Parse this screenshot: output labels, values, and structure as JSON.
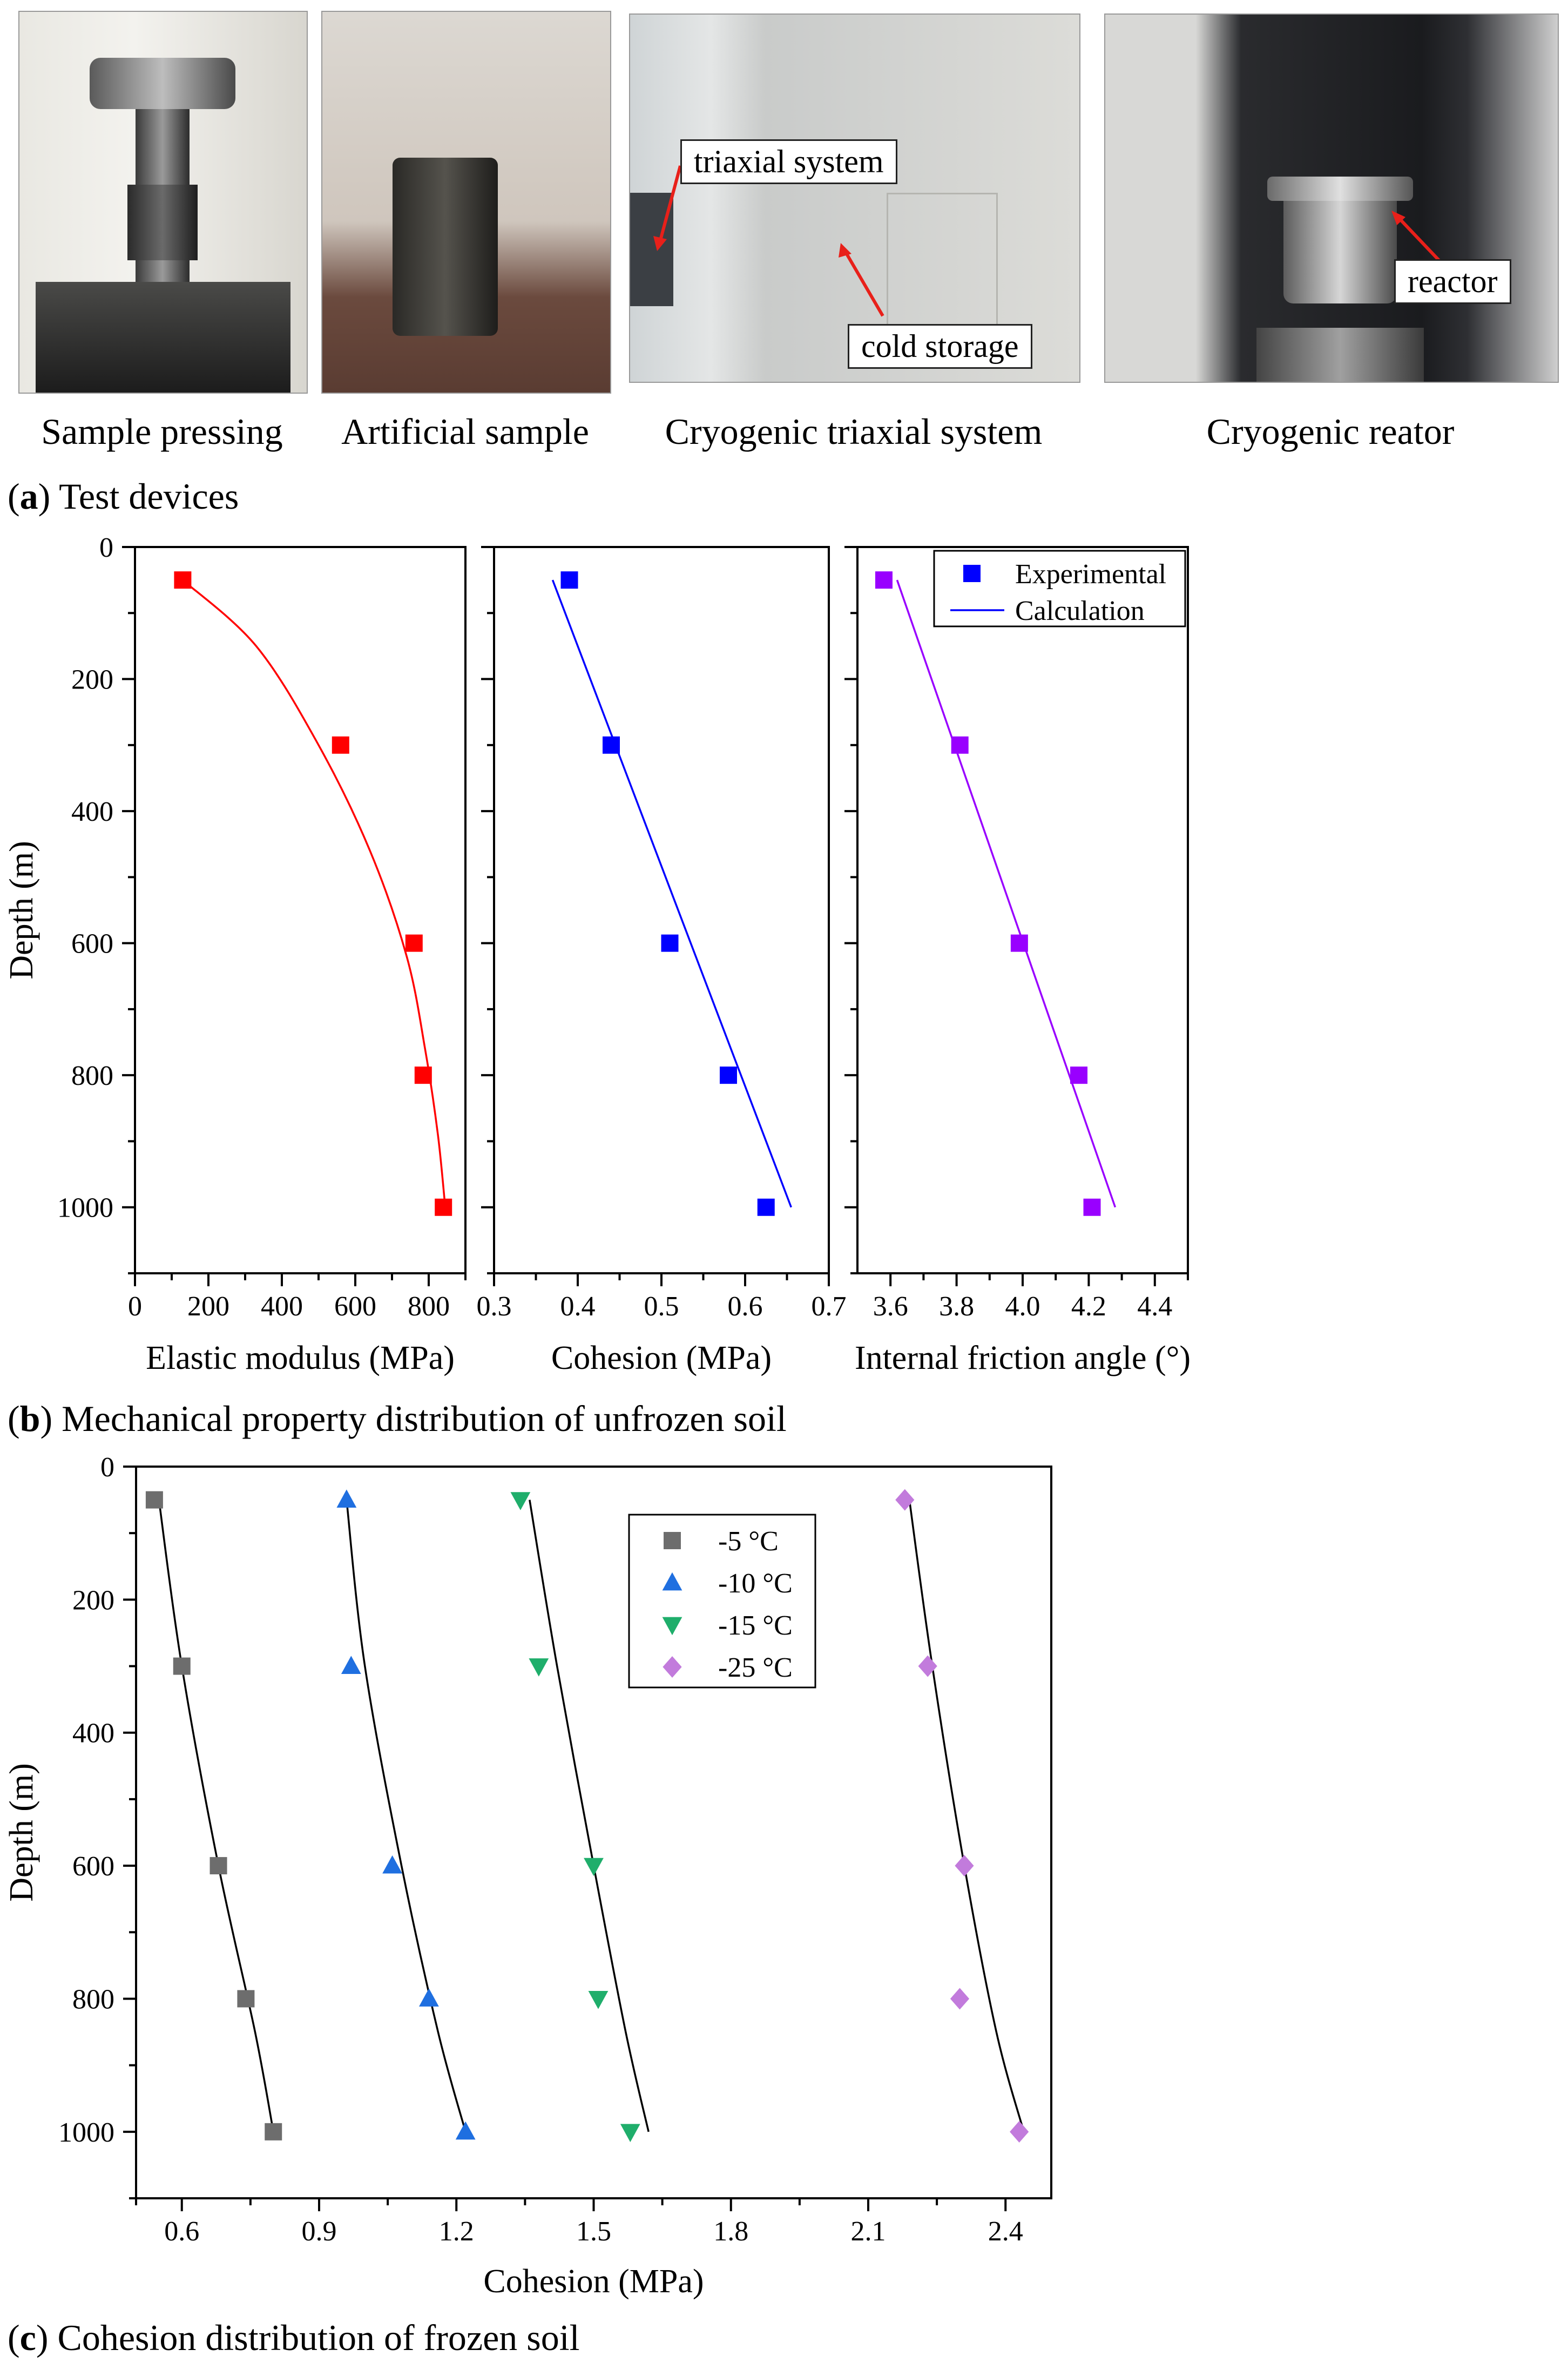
{
  "panel_a": {
    "caption_letter": "a",
    "caption_text": "Test devices",
    "photos": [
      {
        "label": "Sample pressing"
      },
      {
        "label": "Artificial sample"
      },
      {
        "label": "Cryogenic triaxial system",
        "callouts": [
          "triaxial system",
          "cold storage"
        ]
      },
      {
        "label": "Cryogenic reator",
        "callouts": [
          "reactor"
        ]
      }
    ]
  },
  "panel_b": {
    "caption_letter": "b",
    "caption_text": "Mechanical property distribution of unfrozen soil"
  },
  "panel_c": {
    "caption_letter": "c",
    "caption_text": "Cohesion distribution of frozen soil"
  },
  "chart_data": [
    {
      "type": "scatter",
      "ylabel": "Depth (m)",
      "xlabel": "Elastic modulus (MPa)",
      "xlim": [
        0,
        900
      ],
      "ylim": [
        0,
        1100
      ],
      "y_inverted": true,
      "xticks": [
        0,
        200,
        400,
        600,
        800
      ],
      "yticks": [
        0,
        200,
        400,
        600,
        800,
        1000
      ],
      "color": "#ff0000",
      "points": {
        "x": [
          130,
          560,
          760,
          785,
          840
        ],
        "y": [
          50,
          300,
          600,
          800,
          1000
        ]
      },
      "curve": {
        "x": [
          130,
          330,
          500,
          640,
          740,
          790,
          825,
          845
        ],
        "y": [
          50,
          150,
          300,
          460,
          620,
          760,
          890,
          1000
        ]
      }
    },
    {
      "type": "scatter",
      "xlabel": "Cohesion (MPa)",
      "xlim": [
        0.3,
        0.7
      ],
      "ylim": [
        0,
        1100
      ],
      "y_inverted": true,
      "xticks": [
        0.3,
        0.4,
        0.5,
        0.6,
        0.7
      ],
      "color": "#0000ff",
      "points": {
        "x": [
          0.39,
          0.44,
          0.51,
          0.58,
          0.625
        ],
        "y": [
          50,
          300,
          600,
          800,
          1000
        ]
      },
      "curve": {
        "x": [
          0.37,
          0.655
        ],
        "y": [
          50,
          1000
        ]
      }
    },
    {
      "type": "scatter",
      "xlabel": "Internal friction angle (°)",
      "xlim": [
        3.5,
        4.5
      ],
      "ylim": [
        0,
        1100
      ],
      "y_inverted": true,
      "xticks": [
        3.6,
        3.8,
        4.0,
        4.2,
        4.4
      ],
      "color": "#9900ff",
      "points": {
        "x": [
          3.58,
          3.81,
          3.99,
          4.17,
          4.21
        ],
        "y": [
          50,
          300,
          600,
          800,
          1000
        ]
      },
      "curve": {
        "x": [
          3.62,
          4.28
        ],
        "y": [
          50,
          1000
        ]
      },
      "legend": {
        "position": "top-right",
        "marker_label": "Experimental",
        "line_label": "Calculation"
      }
    },
    {
      "type": "scatter",
      "xlabel": "Cohesion (MPa)",
      "ylabel": "Depth (m)",
      "xlim": [
        0.5,
        2.5
      ],
      "ylim": [
        0,
        1100
      ],
      "y_inverted": true,
      "xticks": [
        0.6,
        0.9,
        1.2,
        1.5,
        1.8,
        2.1,
        2.4
      ],
      "yticks": [
        0,
        200,
        400,
        600,
        800,
        1000
      ],
      "legend": {
        "position": "top-right"
      },
      "series": [
        {
          "name": "-5 °C",
          "marker": "square",
          "color": "#6d6d6d",
          "x": [
            0.54,
            0.6,
            0.68,
            0.74,
            0.8
          ],
          "y": [
            50,
            300,
            600,
            800,
            1000
          ],
          "curve": {
            "x": [
              0.55,
              0.6,
              0.68,
              0.76,
              0.8
            ],
            "y": [
              50,
              300,
              600,
              850,
              1000
            ]
          }
        },
        {
          "name": "-10 °C",
          "marker": "triangle-up",
          "color": "#1f6fe0",
          "x": [
            0.96,
            0.97,
            1.06,
            1.14,
            1.22
          ],
          "y": [
            50,
            300,
            600,
            800,
            1000
          ],
          "curve": {
            "x": [
              0.96,
              1.0,
              1.08,
              1.16,
              1.22
            ],
            "y": [
              50,
              300,
              600,
              850,
              1000
            ]
          }
        },
        {
          "name": "-15 °C",
          "marker": "triangle-down",
          "color": "#1fae6b",
          "x": [
            1.34,
            1.38,
            1.5,
            1.51,
            1.58
          ],
          "y": [
            50,
            300,
            600,
            800,
            1000
          ],
          "curve": {
            "x": [
              1.36,
              1.42,
              1.5,
              1.57,
              1.62
            ],
            "y": [
              50,
              300,
              600,
              850,
              1000
            ]
          }
        },
        {
          "name": "-25 °C",
          "marker": "diamond",
          "color": "#c27bdc",
          "x": [
            2.18,
            2.23,
            2.31,
            2.3,
            2.43
          ],
          "y": [
            50,
            300,
            600,
            800,
            1000
          ],
          "curve": {
            "x": [
              2.19,
              2.24,
              2.31,
              2.38,
              2.44
            ],
            "y": [
              50,
              300,
              600,
              850,
              1000
            ]
          }
        }
      ]
    }
  ]
}
